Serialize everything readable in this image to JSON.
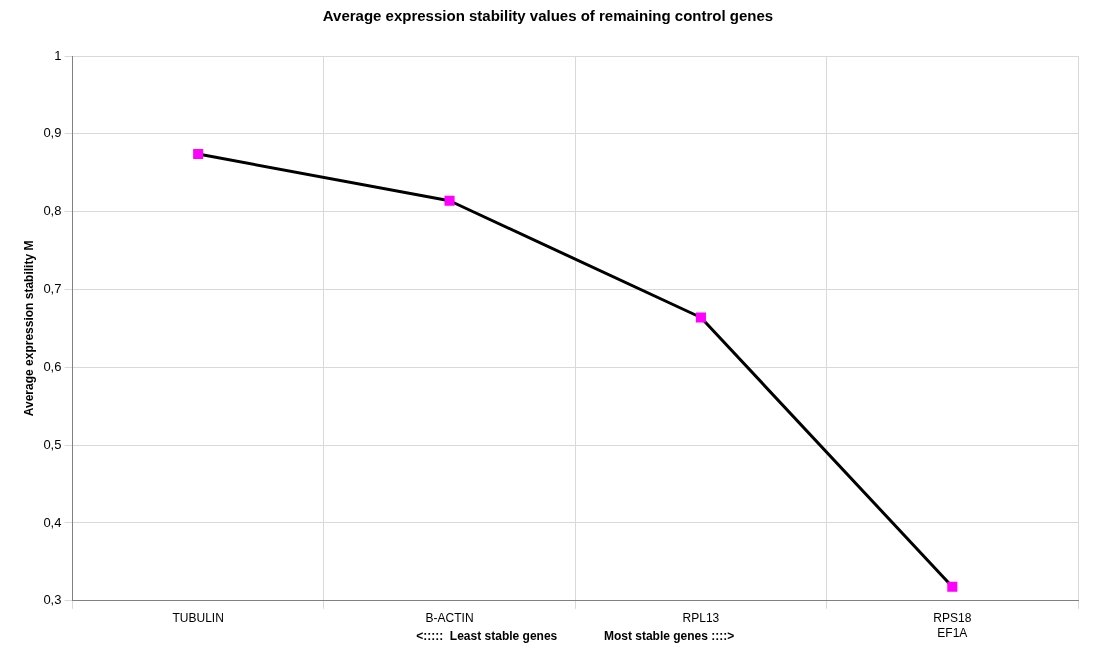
{
  "chart_data": {
    "type": "line",
    "title": "Average expression stability values of remaining control genes",
    "xlabel": "<:::::  Least stable genes              Most stable genes ::::>",
    "ylabel": "Average expression stability M",
    "categories": [
      "TUBULIN",
      "B-ACTIN",
      "RPL13",
      "RPS18\nEF1A"
    ],
    "series": [
      {
        "color": "#000000",
        "colors": [
          "#ff00ff",
          "#ff00ff",
          "#ff00ff",
          "#ff00ff"
        ],
        "values": [
          0.874,
          0.814,
          0.664,
          0.318
        ]
      }
    ],
    "ylim": [
      0.3,
      1
    ],
    "yticks": [
      {
        "value": 0.3,
        "label": "0,3"
      },
      {
        "value": 0.4,
        "label": "0,4"
      },
      {
        "value": 0.5,
        "label": "0,5"
      },
      {
        "value": 0.6,
        "label": "0,6"
      },
      {
        "value": 0.7,
        "label": "0,7"
      },
      {
        "value": 0.8,
        "label": "0,8"
      },
      {
        "value": 0.9,
        "label": "0,9"
      },
      {
        "value": 1,
        "label": "1"
      }
    ],
    "grid": true,
    "legend": false,
    "marker": "square",
    "line_style": "solid"
  }
}
